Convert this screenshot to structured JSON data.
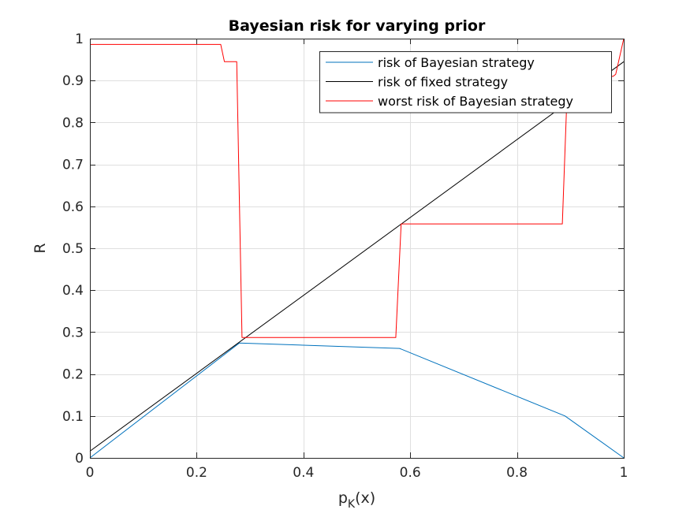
{
  "chart_data": {
    "type": "line",
    "title": "Bayesian risk for varying prior",
    "xlabel_main": "p",
    "xlabel_sub": "K",
    "xlabel_tail": "(x)",
    "ylabel": "R",
    "xlim": [
      0,
      1
    ],
    "ylim": [
      0,
      1
    ],
    "xticks": [
      0,
      0.2,
      0.4,
      0.6,
      0.8,
      1
    ],
    "xtick_labels": [
      "0",
      "0.2",
      "0.4",
      "0.6",
      "0.8",
      "1"
    ],
    "yticks": [
      0,
      0.1,
      0.2,
      0.3,
      0.4,
      0.5,
      0.6,
      0.7,
      0.8,
      0.9,
      1
    ],
    "ytick_labels": [
      "0",
      "0.1",
      "0.2",
      "0.3",
      "0.4",
      "0.5",
      "0.6",
      "0.7",
      "0.8",
      "0.9",
      "1"
    ],
    "grid": true,
    "legend_position": "top-right",
    "series": [
      {
        "name": "risk of Bayesian strategy",
        "color": "#0072BD",
        "x": [
          0,
          0.28,
          0.58,
          0.89,
          1
        ],
        "y": [
          0,
          0.274,
          0.261,
          0.1,
          0
        ]
      },
      {
        "name": "risk of fixed strategy",
        "color": "#000000",
        "x": [
          0,
          1
        ],
        "y": [
          0.016,
          0.945
        ]
      },
      {
        "name": "worst risk of Bayesian strategy",
        "color": "#FF0000",
        "x": [
          0,
          0.245,
          0.252,
          0.27,
          0.275,
          0.285,
          0.573,
          0.583,
          0.59,
          0.885,
          0.895,
          0.905,
          0.98,
          0.985,
          1
        ],
        "y": [
          0.986,
          0.986,
          0.945,
          0.945,
          0.945,
          0.287,
          0.287,
          0.558,
          0.558,
          0.558,
          0.91,
          0.91,
          0.91,
          0.915,
          1
        ]
      }
    ]
  }
}
